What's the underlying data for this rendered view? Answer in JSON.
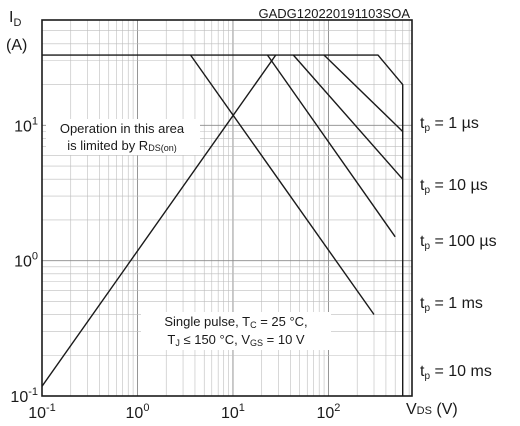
{
  "chart_data": {
    "type": "line",
    "title": "",
    "subtitle": "",
    "doc_code": "GADG120220191103SOA",
    "xlabel": {
      "main": "V",
      "sub": "DS",
      "unit": " (V)"
    },
    "ylabel": {
      "main": "I",
      "sub": "D",
      "unit": "(A)"
    },
    "x_scale": "log",
    "y_scale": "log",
    "xlim": [
      0.1,
      750
    ],
    "ylim": [
      0.1,
      60
    ],
    "grid": true,
    "x_ticks": [
      {
        "value": 0.1,
        "base": "10",
        "exp": "-1"
      },
      {
        "value": 1,
        "base": "10",
        "exp": "0"
      },
      {
        "value": 10,
        "base": "10",
        "exp": "1"
      },
      {
        "value": 100,
        "base": "10",
        "exp": "2"
      }
    ],
    "y_ticks": [
      {
        "value": 0.1,
        "base": "10",
        "exp": "-1"
      },
      {
        "value": 1,
        "base": "10",
        "exp": "0"
      },
      {
        "value": 10,
        "base": "10",
        "exp": "1"
      }
    ],
    "series": [
      {
        "x": [
          0.1,
          28.0
        ],
        "y": [
          0.118,
          33.0
        ]
      },
      {
        "x": [
          3.6,
          300.0
        ],
        "y": [
          33.0,
          0.4
        ]
      },
      {
        "x": [
          23.0,
          500.0
        ],
        "y": [
          33.0,
          1.5
        ]
      },
      {
        "x": [
          43.0,
          600.0
        ],
        "y": [
          33.0,
          4.0
        ]
      },
      {
        "x": [
          90.0,
          600.0
        ],
        "y": [
          33.0,
          9.0
        ]
      },
      {
        "x": [
          0.1,
          330.0,
          600.0,
          600.0
        ],
        "y": [
          33.0,
          33.0,
          20.0,
          0.1
        ]
      }
    ],
    "annotations": {
      "rds_line1": "Operation in this area",
      "rds_line2_prefix": "is limited by R",
      "rds_line2_sub": "DS(on)",
      "cond_line1_prefix": "Single pulse, T",
      "cond_line1_sub": "C",
      "cond_line1_suffix": " = 25 °C,",
      "cond_line2_a": "T",
      "cond_line2_a_sub": "J",
      "cond_line2_b": " ≤ 150 °C, V",
      "cond_line2_b_sub": "GS",
      "cond_line2_c": " = 10 V"
    },
    "pulse_labels": [
      {
        "main": "t",
        "sub": "p",
        "value": " = 1 µs"
      },
      {
        "main": "t",
        "sub": "p",
        "value": " = 10 µs"
      },
      {
        "main": "t",
        "sub": "p",
        "value": " = 100 µs"
      },
      {
        "main": "t",
        "sub": "p",
        "value": " = 1 ms"
      },
      {
        "main": "t",
        "sub": "p",
        "value": " = 10 ms"
      }
    ]
  }
}
